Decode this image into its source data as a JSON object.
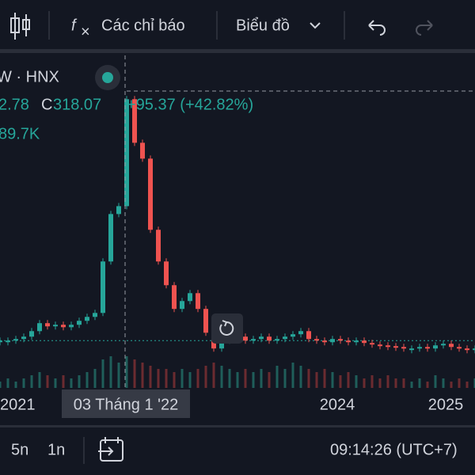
{
  "toolbar": {
    "indicators": "Các chỉ báo",
    "chart_type": "Biểu đồ"
  },
  "legend": {
    "symbol": "W · HNX",
    "open_partial": "2.78",
    "close_key": "C",
    "close": "318.07",
    "change": "+95.37 (+42.82%)",
    "volume_partial": "89.7K"
  },
  "crosshair_label": "03 Tháng 1 '22",
  "x_axis_labels": [
    "2021",
    "2024",
    "2025"
  ],
  "bottom_bar": {
    "range_5d": "5n",
    "range_1d": "1n",
    "clock": "09:14:26 (UTC+7)"
  },
  "chart_data": {
    "type": "candle-line",
    "ylim": [
      0,
      340
    ],
    "values": [
      30,
      30,
      31.9,
      34.7,
      41.3,
      50.8,
      47,
      48.9,
      46,
      48.9,
      53.6,
      58.3,
      63,
      124.4,
      181,
      190.4,
      318,
      266,
      247.1,
      162.2,
      124.4,
      96.1,
      67.8,
      77.2,
      86.6,
      67.8,
      39.4,
      20.6,
      30,
      31.9,
      34.7,
      30,
      31.9,
      34.7,
      30,
      31.9,
      34.7,
      37.6,
      41.3,
      31.9,
      30,
      28.1,
      31.9,
      30,
      28.1,
      30,
      27.2,
      25.3,
      24.3,
      23.4,
      22.4,
      20.6,
      20.6,
      22.4,
      20.6,
      24.3,
      26.2,
      22.4,
      20.6,
      18.7,
      20.6
    ],
    "volume": [
      2,
      3,
      2,
      3,
      4,
      5,
      4,
      3,
      4,
      3,
      4,
      5,
      6,
      9,
      10,
      8,
      10,
      9,
      8,
      7,
      6,
      6,
      5,
      6,
      5,
      6,
      7,
      8,
      7,
      6,
      5,
      6,
      5,
      6,
      5,
      7,
      6,
      8,
      7,
      6,
      5,
      6,
      5,
      4,
      5,
      4,
      3,
      4,
      3,
      4,
      3,
      3,
      2,
      3,
      2,
      4,
      3,
      2,
      3,
      2,
      3
    ],
    "vlim": [
      0,
      20
    ]
  }
}
